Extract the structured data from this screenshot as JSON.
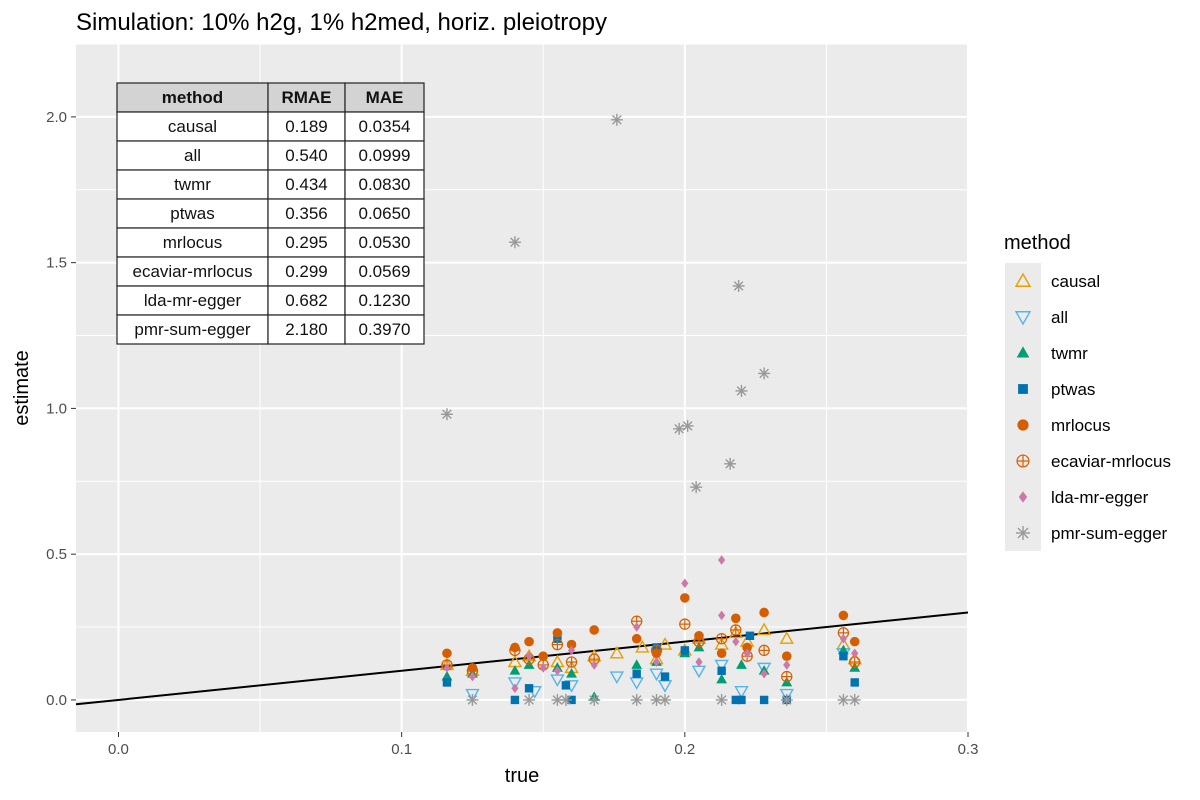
{
  "chart_data": {
    "type": "scatter",
    "title": "Simulation: 10% h2g, 1% h2med, horiz. pleiotropy",
    "xlabel": "true",
    "ylabel": "estimate",
    "xlim": [
      -0.015,
      0.3
    ],
    "ylim": [
      -0.11,
      2.25
    ],
    "x_ticks": [
      0.0,
      0.1,
      0.2,
      0.3
    ],
    "x_tick_labels": [
      "0.0",
      "0.1",
      "0.2",
      "0.3"
    ],
    "y_ticks": [
      0.0,
      0.5,
      1.0,
      1.5,
      2.0
    ],
    "y_tick_labels": [
      "0.0",
      "0.5",
      "1.0",
      "1.5",
      "2.0"
    ],
    "grid": true,
    "legend": {
      "title": "method",
      "placement": "right"
    },
    "reference_line": {
      "slope": 1,
      "intercept": 0
    },
    "colors": {
      "causal": "#E69F00",
      "all": "#56B4E9",
      "twmr": "#009E73",
      "ptwas": "#0072B2",
      "mrlocus": "#D55E00",
      "ecaviar-mrlocus": "#D55E00",
      "lda-mr-egger": "#CC79A7",
      "pmr-sum-egger": "#999999"
    },
    "table": {
      "headers": [
        "method",
        "RMAE",
        "MAE"
      ],
      "rows": [
        [
          "causal",
          "0.189",
          "0.0354"
        ],
        [
          "all",
          "0.540",
          "0.0999"
        ],
        [
          "twmr",
          "0.434",
          "0.0830"
        ],
        [
          "ptwas",
          "0.356",
          "0.0650"
        ],
        [
          "mrlocus",
          "0.295",
          "0.0530"
        ],
        [
          "ecaviar-mrlocus",
          "0.299",
          "0.0569"
        ],
        [
          "lda-mr-egger",
          "0.682",
          "0.1230"
        ],
        [
          "pmr-sum-egger",
          "2.180",
          "0.3970"
        ]
      ]
    },
    "series": [
      {
        "name": "causal",
        "shape": "triangle-open",
        "points": [
          [
            0.116,
            0.12
          ],
          [
            0.125,
            0.1
          ],
          [
            0.14,
            0.13
          ],
          [
            0.145,
            0.15
          ],
          [
            0.155,
            0.13
          ],
          [
            0.16,
            0.11
          ],
          [
            0.168,
            0.15
          ],
          [
            0.176,
            0.16
          ],
          [
            0.185,
            0.18
          ],
          [
            0.19,
            0.14
          ],
          [
            0.193,
            0.19
          ],
          [
            0.2,
            0.17
          ],
          [
            0.205,
            0.21
          ],
          [
            0.213,
            0.19
          ],
          [
            0.218,
            0.23
          ],
          [
            0.222,
            0.2
          ],
          [
            0.228,
            0.24
          ],
          [
            0.236,
            0.21
          ],
          [
            0.256,
            0.19
          ],
          [
            0.26,
            0.14
          ]
        ]
      },
      {
        "name": "all",
        "shape": "triangle-down-open",
        "points": [
          [
            0.125,
            0.02
          ],
          [
            0.14,
            0.06
          ],
          [
            0.147,
            0.03
          ],
          [
            0.155,
            0.07
          ],
          [
            0.16,
            0.05
          ],
          [
            0.176,
            0.08
          ],
          [
            0.183,
            0.06
          ],
          [
            0.19,
            0.09
          ],
          [
            0.193,
            0.05
          ],
          [
            0.205,
            0.1
          ],
          [
            0.213,
            0.12
          ],
          [
            0.22,
            0.03
          ],
          [
            0.228,
            0.11
          ],
          [
            0.236,
            0.02
          ],
          [
            0.256,
            0.16
          ]
        ]
      },
      {
        "name": "twmr",
        "shape": "triangle-filled",
        "points": [
          [
            0.116,
            0.08
          ],
          [
            0.125,
            0.09
          ],
          [
            0.14,
            0.1
          ],
          [
            0.145,
            0.12
          ],
          [
            0.155,
            0.11
          ],
          [
            0.16,
            0.09
          ],
          [
            0.168,
            0.01
          ],
          [
            0.183,
            0.12
          ],
          [
            0.19,
            0.13
          ],
          [
            0.2,
            0.16
          ],
          [
            0.205,
            0.18
          ],
          [
            0.213,
            0.07
          ],
          [
            0.22,
            0.12
          ],
          [
            0.228,
            0.1
          ],
          [
            0.236,
            0.06
          ],
          [
            0.256,
            0.17
          ],
          [
            0.26,
            0.11
          ]
        ]
      },
      {
        "name": "ptwas",
        "shape": "square-filled",
        "points": [
          [
            0.116,
            0.06
          ],
          [
            0.14,
            0.0
          ],
          [
            0.145,
            0.04
          ],
          [
            0.155,
            0.21
          ],
          [
            0.158,
            0.05
          ],
          [
            0.16,
            0.0
          ],
          [
            0.183,
            0.09
          ],
          [
            0.19,
            0.18
          ],
          [
            0.193,
            0.08
          ],
          [
            0.2,
            0.17
          ],
          [
            0.213,
            0.1
          ],
          [
            0.218,
            0.0
          ],
          [
            0.22,
            0.0
          ],
          [
            0.223,
            0.22
          ],
          [
            0.228,
            0.0
          ],
          [
            0.236,
            0.0
          ],
          [
            0.256,
            0.15
          ],
          [
            0.26,
            0.06
          ]
        ]
      },
      {
        "name": "mrlocus",
        "shape": "circle-filled",
        "points": [
          [
            0.116,
            0.16
          ],
          [
            0.125,
            0.11
          ],
          [
            0.14,
            0.18
          ],
          [
            0.145,
            0.2
          ],
          [
            0.15,
            0.15
          ],
          [
            0.155,
            0.23
          ],
          [
            0.16,
            0.19
          ],
          [
            0.168,
            0.24
          ],
          [
            0.183,
            0.21
          ],
          [
            0.19,
            0.16
          ],
          [
            0.2,
            0.35
          ],
          [
            0.205,
            0.22
          ],
          [
            0.213,
            0.16
          ],
          [
            0.218,
            0.28
          ],
          [
            0.222,
            0.18
          ],
          [
            0.228,
            0.3
          ],
          [
            0.236,
            0.15
          ],
          [
            0.256,
            0.29
          ],
          [
            0.26,
            0.2
          ]
        ]
      },
      {
        "name": "ecaviar-mrlocus",
        "shape": "circle-plus",
        "points": [
          [
            0.116,
            0.12
          ],
          [
            0.125,
            0.1
          ],
          [
            0.14,
            0.17
          ],
          [
            0.145,
            0.14
          ],
          [
            0.15,
            0.12
          ],
          [
            0.155,
            0.19
          ],
          [
            0.16,
            0.13
          ],
          [
            0.168,
            0.14
          ],
          [
            0.183,
            0.27
          ],
          [
            0.19,
            0.17
          ],
          [
            0.2,
            0.26
          ],
          [
            0.205,
            0.2
          ],
          [
            0.213,
            0.21
          ],
          [
            0.218,
            0.24
          ],
          [
            0.222,
            0.15
          ],
          [
            0.228,
            0.17
          ],
          [
            0.236,
            0.08
          ],
          [
            0.256,
            0.23
          ],
          [
            0.26,
            0.13
          ]
        ]
      },
      {
        "name": "lda-mr-egger",
        "shape": "diamond-filled",
        "points": [
          [
            0.116,
            0.11
          ],
          [
            0.125,
            0.08
          ],
          [
            0.14,
            0.04
          ],
          [
            0.145,
            0.15
          ],
          [
            0.15,
            0.11
          ],
          [
            0.155,
            0.1
          ],
          [
            0.16,
            0.17
          ],
          [
            0.168,
            0.12
          ],
          [
            0.183,
            0.25
          ],
          [
            0.19,
            0.13
          ],
          [
            0.2,
            0.4
          ],
          [
            0.205,
            0.13
          ],
          [
            0.213,
            0.48
          ],
          [
            0.213,
            0.29
          ],
          [
            0.218,
            0.2
          ],
          [
            0.222,
            0.16
          ],
          [
            0.228,
            0.09
          ],
          [
            0.236,
            0.12
          ],
          [
            0.256,
            0.21
          ],
          [
            0.26,
            0.16
          ]
        ]
      },
      {
        "name": "pmr-sum-egger",
        "shape": "asterisk",
        "points": [
          [
            0.116,
            0.98
          ],
          [
            0.125,
            0.0
          ],
          [
            0.14,
            1.57
          ],
          [
            0.145,
            0.0
          ],
          [
            0.155,
            0.0
          ],
          [
            0.158,
            0.0
          ],
          [
            0.168,
            0.0
          ],
          [
            0.176,
            1.99
          ],
          [
            0.183,
            0.0
          ],
          [
            0.19,
            0.0
          ],
          [
            0.193,
            0.0
          ],
          [
            0.198,
            0.93
          ],
          [
            0.201,
            0.94
          ],
          [
            0.204,
            0.73
          ],
          [
            0.213,
            0.0
          ],
          [
            0.216,
            0.81
          ],
          [
            0.219,
            1.42
          ],
          [
            0.22,
            1.06
          ],
          [
            0.228,
            1.12
          ],
          [
            0.236,
            0.0
          ],
          [
            0.256,
            0.0
          ],
          [
            0.26,
            0.0
          ]
        ]
      }
    ]
  }
}
